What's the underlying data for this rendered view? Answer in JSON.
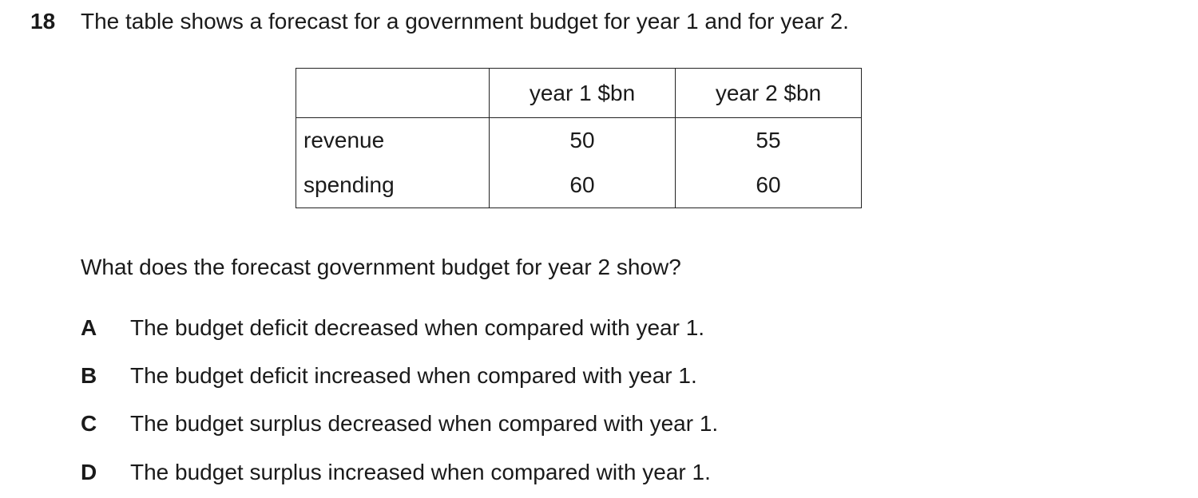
{
  "question": {
    "number": "18",
    "stem": "The table shows a forecast for a government budget for year 1 and for year 2.",
    "prompt": "What does the forecast government budget for year 2 show?"
  },
  "table": {
    "headers": [
      "",
      "year 1 $bn",
      "year 2 $bn"
    ],
    "rows": [
      {
        "label": "revenue",
        "year1": "50",
        "year2": "55"
      },
      {
        "label": "spending",
        "year1": "60",
        "year2": "60"
      }
    ]
  },
  "options": [
    {
      "letter": "A",
      "text": "The budget deficit decreased when compared with year 1."
    },
    {
      "letter": "B",
      "text": "The budget deficit increased when compared with year 1."
    },
    {
      "letter": "C",
      "text": "The budget surplus decreased when compared with year 1."
    },
    {
      "letter": "D",
      "text": "The budget surplus increased when compared with year 1."
    }
  ]
}
